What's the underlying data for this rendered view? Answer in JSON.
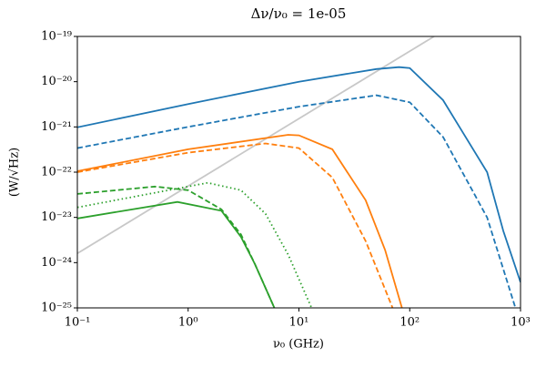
{
  "chart_data": {
    "type": "line",
    "title": "Δν/ν₀ = 1e-05",
    "x_label": "ν₀ (GHz)",
    "y_label": "(W/√Hz)",
    "x_log": true,
    "y_log": true,
    "xlim": [
      0.1,
      1000
    ],
    "ylim": [
      1e-25,
      1e-19
    ],
    "xticks": [
      {
        "value": 0.1,
        "label": "10⁻¹"
      },
      {
        "value": 1,
        "label": "10⁰"
      },
      {
        "value": 10,
        "label": "10¹"
      },
      {
        "value": 100,
        "label": "10²"
      },
      {
        "value": 1000,
        "label": "10³"
      }
    ],
    "yticks": [
      {
        "value": 1e-25,
        "label": "10⁻²⁵"
      },
      {
        "value": 1e-24,
        "label": "10⁻²⁴"
      },
      {
        "value": 1e-23,
        "label": "10⁻²³"
      },
      {
        "value": 1e-22,
        "label": "10⁻²²"
      },
      {
        "value": 1e-21,
        "label": "10⁻²¹"
      },
      {
        "value": 1e-20,
        "label": "10⁻²⁰"
      },
      {
        "value": 1e-19,
        "label": "10⁻¹⁹"
      }
    ],
    "series": [
      {
        "color": "#1f77b4",
        "dash": "solid",
        "x": [
          0.1,
          1,
          10,
          50,
          80,
          100,
          200,
          500,
          700,
          1000
        ],
        "values": [
          9.8e-22,
          3.2e-21,
          1e-20,
          1.9e-20,
          2.1e-20,
          2e-20,
          3.9e-21,
          1e-22,
          5e-24,
          3.7e-25
        ]
      },
      {
        "color": "#1f77b4",
        "dash": "dashed",
        "x": [
          0.1,
          1,
          10,
          50,
          100,
          200,
          500,
          900
        ],
        "values": [
          3.4e-22,
          1e-21,
          2.8e-21,
          5e-21,
          3.5e-21,
          6e-22,
          1e-23,
          1e-25
        ]
      },
      {
        "color": "#ff7f0e",
        "dash": "solid",
        "x": [
          0.1,
          1,
          8,
          10,
          20,
          40,
          60,
          85
        ],
        "values": [
          1.05e-22,
          3.2e-22,
          6.7e-22,
          6.5e-22,
          3.2e-22,
          2.4e-23,
          1.9e-24,
          1e-25
        ]
      },
      {
        "color": "#ff7f0e",
        "dash": "dashed",
        "x": [
          0.1,
          1,
          5,
          10,
          20,
          40,
          70
        ],
        "values": [
          1e-22,
          2.7e-22,
          4.3e-22,
          3.4e-22,
          7.6e-23,
          3e-24,
          1e-25
        ]
      },
      {
        "color": "#2ca02c",
        "dash": "solid",
        "x": [
          0.1,
          0.8,
          2,
          3,
          4,
          6
        ],
        "values": [
          9.5e-24,
          2.2e-23,
          1.4e-23,
          3.7e-24,
          9.3e-25,
          1e-25
        ]
      },
      {
        "color": "#2ca02c",
        "dash": "dashed",
        "x": [
          0.1,
          0.5,
          1,
          2,
          3,
          4,
          6
        ],
        "values": [
          3.3e-23,
          4.8e-23,
          4e-23,
          1.5e-23,
          4.2e-24,
          9.3e-25,
          1e-25
        ]
      },
      {
        "color": "#2ca02c",
        "dash": "dotted",
        "x": [
          0.1,
          1.5,
          3,
          5,
          8,
          13
        ],
        "values": [
          1.66e-23,
          5.8e-23,
          4e-23,
          1.2e-23,
          1.5e-24,
          1e-25
        ]
      },
      {
        "color": "#c8c8c8",
        "dash": "solid",
        "x": [
          0.1,
          166
        ],
        "values": [
          1.6e-24,
          1e-19
        ]
      }
    ]
  }
}
